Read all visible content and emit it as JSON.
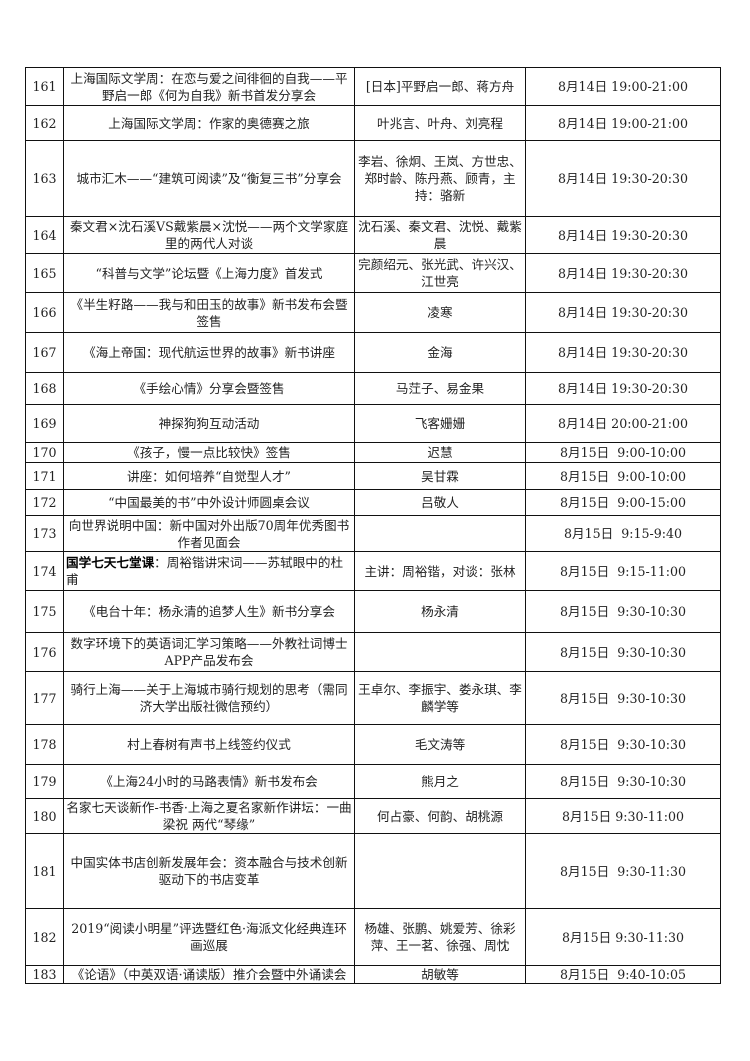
{
  "rows": [
    {
      "no": "161",
      "title": "上海国际文学周：在恋与爱之间徘徊的自我——平野启一郎《何为自我》新书首发分享会",
      "people": "[日本]平野启一郎、蒋方舟",
      "time": "8月14日 19:00-21:00"
    },
    {
      "no": "162",
      "title": "上海国际文学周：作家的奥德赛之旅",
      "people": "叶兆言、叶舟、刘亮程",
      "time": "8月14日 19:00-21:00"
    },
    {
      "no": "163",
      "title": "城市汇木——“建筑可阅读”及“衡复三书”分享会",
      "people": "李岩、徐炯、王岚、方世忠、郑时龄、陈丹燕、顾青，主持：骆新",
      "time": "8月14日 19:30-20:30"
    },
    {
      "no": "164",
      "title": "秦文君×沈石溪VS戴紫晨×沈悦——两个文学家庭里的两代人对谈",
      "people": "沈石溪、秦文君、沈悦、戴紫晨",
      "time": "8月14日 19:30-20:30"
    },
    {
      "no": "165",
      "title": "“科普与文学”论坛暨《上海力度》首发式",
      "people": "完颜绍元、张光武、许兴汉、江世亮",
      "time": "8月14日 19:30-20:30"
    },
    {
      "no": "166",
      "title": "《半生籽路——我与和田玉的故事》新书发布会暨签售",
      "people": "凌寒",
      "time": "8月14日 19:30-20:30"
    },
    {
      "no": "167",
      "title": "《海上帝国：现代航运世界的故事》新书讲座",
      "people": "金海",
      "time": "8月14日 19:30-20:30"
    },
    {
      "no": "168",
      "title": "《手绘心情》分享会暨签售",
      "people": "马茳子、易金果",
      "time": "8月14日 19:30-20:30"
    },
    {
      "no": "169",
      "title": "神探狗狗互动活动",
      "people": "飞客姗姗",
      "time": "8月14日 20:00-21:00"
    },
    {
      "no": "170",
      "title": "《孩子，慢一点比较快》签售",
      "people": "迟慧",
      "time": "8月15日  9:00-10:00"
    },
    {
      "no": "171",
      "title": "讲座：如何培养“自觉型人才”",
      "people": "吴甘霖",
      "time": "8月15日  9:00-10:00"
    },
    {
      "no": "172",
      "title": "“中国最美的书”中外设计师圆桌会议",
      "people": "吕敬人",
      "time": "8月15日  9:00-15:00"
    },
    {
      "no": "173",
      "title": "向世界说明中国：新中国对外出版70周年优秀图书作者见面会",
      "people": "",
      "time": "8月15日  9:15-9:40"
    },
    {
      "no": "174",
      "title_bold": "国学七天七堂课",
      "title": "：周裕锴讲宋词——苏轼眼中的杜甫",
      "people": "主讲：周裕锴，对谈：张林",
      "time": "8月15日  9:15-11:00"
    },
    {
      "no": "175",
      "title": "《电台十年：杨永清的追梦人生》新书分享会",
      "people": "杨永清",
      "time": "8月15日  9:30-10:30"
    },
    {
      "no": "176",
      "title": "数字环境下的英语词汇学习策略——外教社词博士APP产品发布会",
      "people": "",
      "time": "8月15日  9:30-10:30"
    },
    {
      "no": "177",
      "title": "骑行上海——关于上海城市骑行规划的思考（需同济大学出版社微信预约）",
      "people": "王卓尔、李振宇、娄永琪、李麟学等",
      "time": "8月15日  9:30-10:30"
    },
    {
      "no": "178",
      "title": "村上春树有声书上线签约仪式",
      "people": "毛文涛等",
      "time": "8月15日  9:30-10:30"
    },
    {
      "no": "179",
      "title": "《上海24小时的马路表情》新书发布会",
      "people": "熊月之",
      "time": "8月15日  9:30-10:30"
    },
    {
      "no": "180",
      "title": "名家七天谈新作-书香·上海之夏名家新作讲坛：一曲梁祝 两代“琴缘”",
      "people": "何占豪、何韵、胡桃源",
      "time": "8月15日 9:30-11:00"
    },
    {
      "no": "181",
      "title": "中国实体书店创新发展年会：资本融合与技术创新驱动下的书店变革",
      "people": "",
      "time": "8月15日  9:30-11:30"
    },
    {
      "no": "182",
      "title": "2019“阅读小明星”评选暨红色·海派文化经典连环画巡展",
      "people": "杨雄、张鹏、姚爱芳、徐彩萍、王一茗、徐强、周忱",
      "time": "8月15日 9:30-11:30"
    },
    {
      "no": "183",
      "title": "《论语》（中英双语·诵读版）推介会暨中外诵读会",
      "people": "胡敏等",
      "time": "8月15日  9:40-10:05"
    }
  ]
}
